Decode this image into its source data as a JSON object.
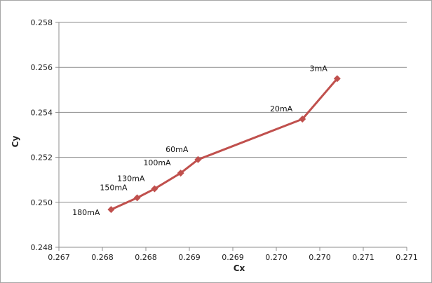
{
  "chart_data": {
    "type": "line",
    "xlabel": "Cx",
    "ylabel": "Cy",
    "xlim": [
      0.267,
      0.271
    ],
    "ylim": [
      0.248,
      0.258
    ],
    "x_tick_values": [
      0.267,
      0.2675,
      0.268,
      0.2685,
      0.269,
      0.2695,
      0.27,
      0.2705,
      0.271
    ],
    "x_tick_labels": [
      "0.267",
      "0.268",
      "0.268",
      "0.269",
      "0.269",
      "0.270",
      "0.270",
      "0.271",
      "0.271"
    ],
    "y_tick_values": [
      0.248,
      0.25,
      0.252,
      0.254,
      0.256,
      0.258
    ],
    "y_tick_labels": [
      "0.248",
      "0.250",
      "0.252",
      "0.254",
      "0.256",
      "0.258"
    ],
    "grid": "horizontal",
    "legend": "none",
    "series": [
      {
        "color": "#c0504d",
        "marker": "diamond",
        "points": [
          {
            "x": 0.2676,
            "y": 0.24968,
            "label": "180mA"
          },
          {
            "x": 0.2679,
            "y": 0.2502,
            "label": "150mA"
          },
          {
            "x": 0.2681,
            "y": 0.2506,
            "label": "130mA"
          },
          {
            "x": 0.2684,
            "y": 0.2513,
            "label": "100mA"
          },
          {
            "x": 0.2686,
            "y": 0.2519,
            "label": "60mA"
          },
          {
            "x": 0.2698,
            "y": 0.2537,
            "label": "20mA"
          },
          {
            "x": 0.2702,
            "y": 0.2555,
            "label": "3mA"
          }
        ]
      }
    ]
  }
}
